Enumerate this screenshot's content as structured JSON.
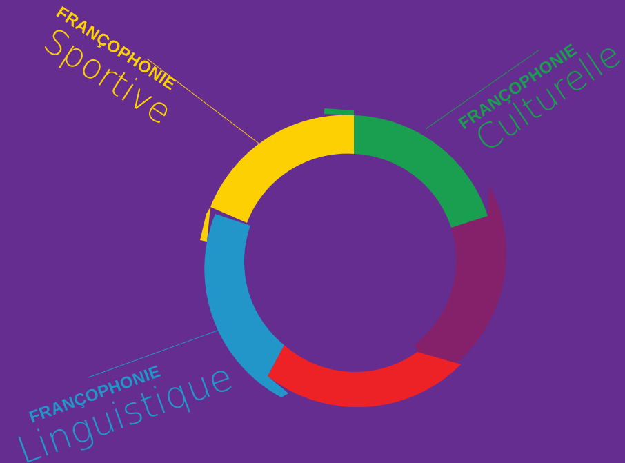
{
  "colors": {
    "background": "#652d90",
    "yellow": "#fdd003",
    "green": "#1a9e4f",
    "blue": "#2296c9",
    "red": "#ec2227",
    "purple_dark": "#84216a"
  },
  "labels": {
    "sportive": {
      "top": "FRANÇOPHONIE",
      "bottom": "Sportive"
    },
    "culturelle": {
      "top": "FRANÇOPHONIE",
      "bottom": "Culturelle"
    },
    "linguistique": {
      "top": "FRANÇOPHONIE",
      "bottom": "Linguistique"
    }
  }
}
